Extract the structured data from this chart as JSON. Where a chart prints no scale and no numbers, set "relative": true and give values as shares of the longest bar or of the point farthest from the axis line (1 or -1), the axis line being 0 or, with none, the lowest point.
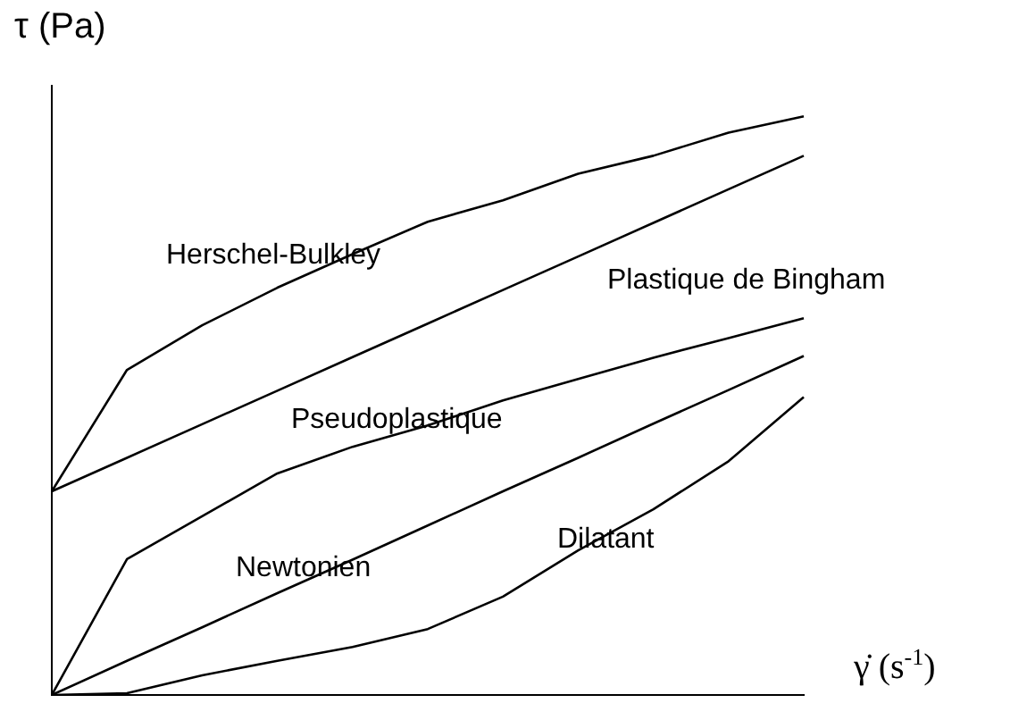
{
  "chart_data": {
    "type": "line",
    "relative": true,
    "xlabel": "γ̇ (s$^{-1}$)",
    "ylabel": "τ (Pa)",
    "grid": false,
    "legend": false,
    "marker": "none",
    "line_style": "solid",
    "categories": [
      null,
      null,
      null,
      null,
      null,
      null,
      null,
      null,
      null,
      null,
      null
    ],
    "series": [
      {
        "name": "Herschel-Bulkley",
        "color": "#000000",
        "values": [
          0.352,
          0.562,
          0.639,
          0.704,
          0.762,
          0.818,
          0.855,
          0.901,
          0.932,
          0.972,
          1
        ]
      },
      {
        "name": "Plastique de Bingham",
        "color": "#000000",
        "values": [
          0.352,
          0.41,
          0.468,
          0.526,
          0.584,
          0.642,
          0.7,
          0.758,
          0.816,
          0.874,
          0.932
        ]
      },
      {
        "name": "Pseudoplastique",
        "color": "#000000",
        "values": [
          0,
          0.235,
          0.309,
          0.383,
          0.429,
          0.466,
          0.509,
          0.546,
          0.583,
          0.617,
          0.651
        ]
      },
      {
        "name": "Newtonien",
        "color": "#000000",
        "values": [
          0,
          0.059,
          0.117,
          0.176,
          0.234,
          0.293,
          0.352,
          0.41,
          0.469,
          0.527,
          0.586
        ]
      },
      {
        "name": "Dilatant",
        "color": "#000000",
        "values": [
          0,
          0.003,
          0.034,
          0.059,
          0.083,
          0.114,
          0.17,
          0.25,
          0.321,
          0.404,
          0.515
        ]
      }
    ]
  }
}
